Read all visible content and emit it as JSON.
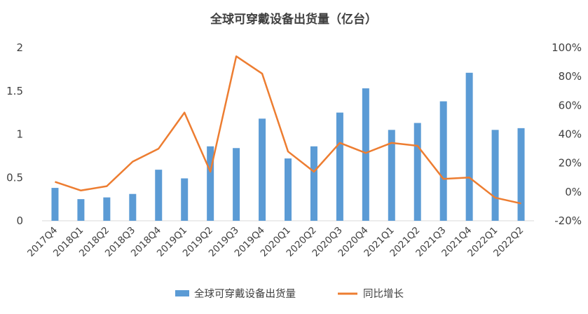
{
  "chart_data": {
    "type": "bar",
    "title": "全球可穿戴设备出货量（亿台）",
    "categories": [
      "2017Q4",
      "2018Q1",
      "2018Q2",
      "2018Q3",
      "2018Q4",
      "2019Q1",
      "2019Q2",
      "2019Q3",
      "2019Q4",
      "2020Q1",
      "2020Q2",
      "2020Q3",
      "2020Q4",
      "2021Q1",
      "2021Q2",
      "2021Q3",
      "2021Q4",
      "2022Q1",
      "2022Q2"
    ],
    "series": [
      {
        "name": "全球可穿戴设备出货量",
        "kind": "bar",
        "axis": "left",
        "color": "#5B9BD5",
        "values": [
          0.38,
          0.25,
          0.27,
          0.31,
          0.59,
          0.49,
          0.86,
          0.84,
          1.18,
          0.72,
          0.86,
          1.25,
          1.53,
          1.05,
          1.13,
          1.38,
          1.71,
          1.05,
          1.07
        ]
      },
      {
        "name": "同比增长",
        "kind": "line",
        "axis": "right",
        "color": "#ED7D31",
        "values": [
          0.07,
          0.01,
          0.04,
          0.21,
          0.3,
          0.55,
          0.14,
          0.94,
          0.82,
          0.28,
          0.14,
          0.34,
          0.27,
          0.34,
          0.32,
          0.09,
          0.1,
          -0.04,
          -0.08
        ]
      }
    ],
    "y_left": {
      "min": 0,
      "max": 2,
      "ticks": [
        "0",
        "0.5",
        "1",
        "1.5",
        "2"
      ]
    },
    "y_right": {
      "min": -0.2,
      "max": 1.0,
      "ticks": [
        "-20%",
        "0%",
        "20%",
        "40%",
        "60%",
        "80%",
        "100%"
      ]
    },
    "grid": false,
    "legend_position": "bottom"
  }
}
